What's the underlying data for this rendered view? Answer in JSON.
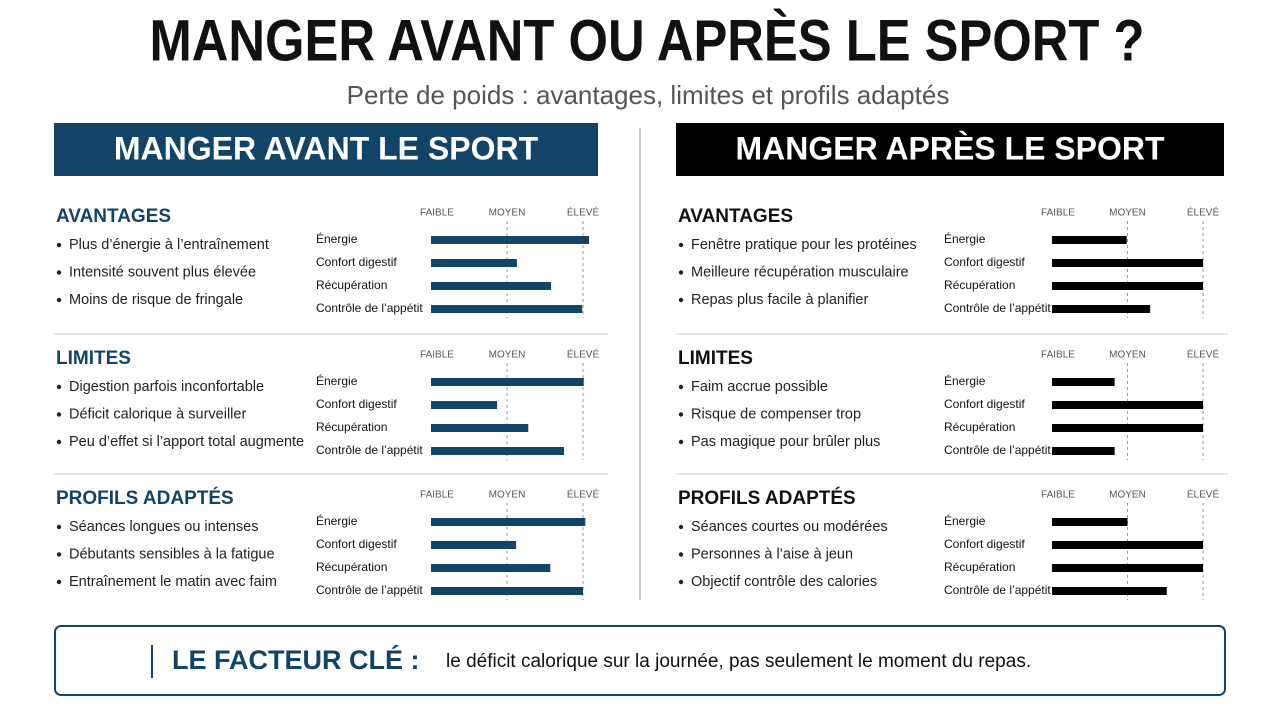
{
  "title": "MANGER AVANT OU APRÈS LE SPORT ?",
  "subtitle": "Perte de poids : avantages, limites et profils adaptés",
  "panels": [
    {
      "heading": "MANGER AVANT LE SPORT",
      "color": "#124468",
      "sections": [
        {
          "heading": "AVANTAGES",
          "bullets": [
            "Plus d’énergie à l’entraînement",
            "Intensité souvent plus élevée",
            "Moins de risque de fringale"
          ]
        },
        {
          "heading": "LIMITES",
          "bullets": [
            "Digestion parfois inconfortable",
            "Déficit calorique à surveiller",
            "Peu d’effet si l’apport total augmente"
          ]
        },
        {
          "heading": "PROFILS ADAPTÉS",
          "bullets": [
            "Séances longues ou intenses",
            "Débutants sensibles à la fatigue",
            "Entraînement le matin avec faim"
          ]
        }
      ]
    },
    {
      "heading": "MANGER APRÈS LE SPORT",
      "color": "#000000",
      "sections": [
        {
          "heading": "AVANTAGES",
          "bullets": [
            "Fenêtre pratique pour les protéines",
            "Meilleure récupération musculaire",
            "Repas plus facile à planifier"
          ]
        },
        {
          "heading": "LIMITES",
          "bullets": [
            "Faim accrue possible",
            "Risque de compenser trop",
            "Pas magique pour brûler plus"
          ]
        },
        {
          "heading": "PROFILS ADAPTÉS",
          "bullets": [
            "Séances courtes ou modérées",
            "Personnes à l’aise à jeun",
            "Objectif contrôle des calories"
          ]
        }
      ]
    }
  ],
  "chart_data": [
    {
      "type": "bar",
      "orientation": "horizontal",
      "categories": [
        "Énergie",
        "Confort digestif",
        "Récupération",
        "Contrôle de l’appétit"
      ],
      "values": [
        2.08,
        1.13,
        1.58,
        1.99
      ],
      "color": "#124468",
      "xlim": [
        0,
        2
      ],
      "xticks": [
        {
          "value": 0,
          "label": "FAIBLE"
        },
        {
          "value": 1,
          "label": "MOYEN"
        },
        {
          "value": 2,
          "label": "ÉLEVÉ"
        }
      ]
    },
    {
      "type": "bar",
      "orientation": "horizontal",
      "categories": [
        "Énergie",
        "Confort digestif",
        "Récupération",
        "Contrôle de l’appétit"
      ],
      "values": [
        2.01,
        0.87,
        1.28,
        1.75
      ],
      "color": "#124468",
      "xlim": [
        0,
        2
      ],
      "xticks": [
        {
          "value": 0,
          "label": "FAIBLE"
        },
        {
          "value": 1,
          "label": "MOYEN"
        },
        {
          "value": 2,
          "label": "ÉLEVÉ"
        }
      ]
    },
    {
      "type": "bar",
      "orientation": "horizontal",
      "categories": [
        "Énergie",
        "Confort digestif",
        "Récupération",
        "Contrôle de l’appétit"
      ],
      "values": [
        2.03,
        1.12,
        1.57,
        2.0
      ],
      "color": "#124468",
      "xlim": [
        0,
        2
      ],
      "xticks": [
        {
          "value": 0,
          "label": "FAIBLE"
        },
        {
          "value": 1,
          "label": "MOYEN"
        },
        {
          "value": 2,
          "label": "ÉLEVÉ"
        }
      ]
    },
    {
      "type": "bar",
      "orientation": "horizontal",
      "categories": [
        "Énergie",
        "Confort digestif",
        "Récupération",
        "Contrôle de l’appétit"
      ],
      "values": [
        0.99,
        2.0,
        2.0,
        1.3
      ],
      "color": "#000000",
      "xlim": [
        0,
        2
      ],
      "xticks": [
        {
          "value": 0,
          "label": "FAIBLE"
        },
        {
          "value": 1,
          "label": "MOYEN"
        },
        {
          "value": 2,
          "label": "ÉLEVÉ"
        }
      ]
    },
    {
      "type": "bar",
      "orientation": "horizontal",
      "categories": [
        "Énergie",
        "Confort digestif",
        "Récupération",
        "Contrôle de l’appétit"
      ],
      "values": [
        0.83,
        2.0,
        2.0,
        0.83
      ],
      "color": "#000000",
      "xlim": [
        0,
        2
      ],
      "xticks": [
        {
          "value": 0,
          "label": "FAIBLE"
        },
        {
          "value": 1,
          "label": "MOYEN"
        },
        {
          "value": 2,
          "label": "ÉLEVÉ"
        }
      ]
    },
    {
      "type": "bar",
      "orientation": "horizontal",
      "categories": [
        "Énergie",
        "Confort digestif",
        "Récupération",
        "Contrôle de l’appétit"
      ],
      "values": [
        1.0,
        2.0,
        2.0,
        1.52
      ],
      "color": "#000000",
      "xlim": [
        0,
        2
      ],
      "xticks": [
        {
          "value": 0,
          "label": "FAIBLE"
        },
        {
          "value": 1,
          "label": "MOYEN"
        },
        {
          "value": 2,
          "label": "ÉLEVÉ"
        }
      ]
    }
  ],
  "footer": {
    "label": "LE FACTEUR CLÉ :",
    "text": "le déficit calorique sur la journée, pas seulement le moment du repas."
  }
}
